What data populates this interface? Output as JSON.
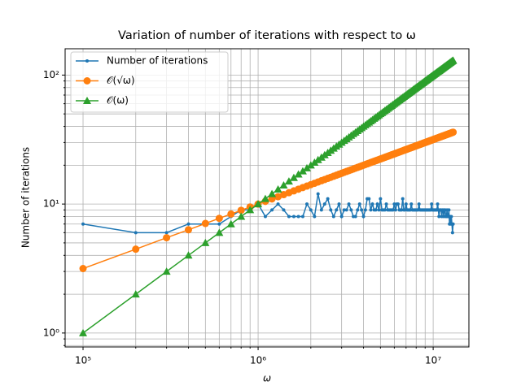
{
  "chart_data": {
    "type": "line",
    "title": "Variation of number of iterations with respect to ω",
    "xlabel": "ω",
    "ylabel": "Number of iterations",
    "xscale": "log",
    "yscale": "log",
    "grid": true,
    "legend": "upper left",
    "xlim": [
      79000,
      16000000
    ],
    "ylim": [
      0.78,
      160
    ],
    "xticks": [
      {
        "value": 100000,
        "label": "10⁵"
      },
      {
        "value": 1000000,
        "label": "10⁶"
      },
      {
        "value": 10000000,
        "label": "10⁷"
      }
    ],
    "yticks": [
      {
        "value": 1,
        "label": "10⁰"
      },
      {
        "value": 10,
        "label": "10¹"
      },
      {
        "value": 100,
        "label": "10²"
      }
    ],
    "xminorticks": [
      200000,
      300000,
      400000,
      500000,
      600000,
      700000,
      800000,
      900000,
      2000000,
      3000000,
      4000000,
      5000000,
      6000000,
      7000000,
      8000000,
      9000000
    ],
    "yminorticks": [
      0.8,
      0.9,
      2,
      3,
      4,
      5,
      6,
      7,
      8,
      9,
      20,
      30,
      40,
      50,
      60,
      70,
      80,
      90
    ],
    "x": [
      100000,
      200000,
      300000,
      400000,
      500000,
      600000,
      700000,
      800000,
      900000,
      1000000,
      1100000,
      1200000,
      1300000,
      1400000,
      1500000,
      1600000,
      1700000,
      1800000,
      1900000,
      2000000,
      2100000,
      2200000,
      2300000,
      2400000,
      2500000,
      2600000,
      2700000,
      2800000,
      2900000,
      3000000,
      3100000,
      3200000,
      3300000,
      3400000,
      3500000,
      3600000,
      3700000,
      3800000,
      3900000,
      4000000,
      4100000,
      4200000,
      4300000,
      4400000,
      4500000,
      4600000,
      4700000,
      4800000,
      4900000,
      5000000,
      5100000,
      5200000,
      5300000,
      5400000,
      5500000,
      5600000,
      5700000,
      5800000,
      5900000,
      6000000,
      6100000,
      6200000,
      6300000,
      6400000,
      6500000,
      6600000,
      6700000,
      6800000,
      6900000,
      7000000,
      7100000,
      7200000,
      7300000,
      7400000,
      7500000,
      7600000,
      7700000,
      7800000,
      7900000,
      8000000,
      8100000,
      8200000,
      8300000,
      8400000,
      8500000,
      8600000,
      8700000,
      8800000,
      8900000,
      9000000,
      9100000,
      9200000,
      9300000,
      9400000,
      9500000,
      9600000,
      9700000,
      9800000,
      9900000,
      10000000,
      10100000,
      10200000,
      10300000,
      10400000,
      10500000,
      10600000,
      10700000,
      10800000,
      10900000,
      11000000,
      11100000,
      11200000,
      11300000,
      11400000,
      11500000,
      11600000,
      11700000,
      11800000,
      11900000,
      12000000,
      12100000,
      12200000,
      12300000,
      12400000,
      12500000,
      12600000,
      12700000,
      12800000,
      12900000,
      13000000
    ],
    "series": [
      {
        "name": "Number of iterations",
        "color": "#1f77b4",
        "marker": "dot",
        "values": [
          7,
          6,
          6,
          7,
          7,
          7,
          8,
          9,
          9,
          10,
          8,
          9,
          10,
          9,
          8,
          8,
          8,
          8,
          10,
          9,
          8,
          12,
          9,
          10,
          11,
          9,
          8,
          9,
          10,
          8,
          9,
          9,
          10,
          9,
          8,
          8,
          9,
          10,
          9,
          8,
          9,
          11,
          11,
          9,
          10,
          9,
          9,
          10,
          9,
          11,
          9,
          9,
          9,
          10,
          9,
          9,
          9,
          9,
          9,
          10,
          9,
          10,
          10,
          9,
          9,
          9,
          11,
          9,
          9,
          10,
          9,
          9,
          9,
          9,
          10,
          9,
          9,
          9,
          9,
          9,
          9,
          9,
          10,
          9,
          9,
          9,
          9,
          9,
          9,
          9,
          9,
          9,
          9,
          9,
          9,
          9,
          9,
          10,
          9,
          9,
          9,
          9,
          9,
          9,
          9,
          10,
          9,
          8,
          9,
          9,
          9,
          8,
          9,
          9,
          8,
          9,
          9,
          8,
          8,
          9,
          8,
          8,
          9,
          7,
          8,
          7,
          8,
          7,
          6,
          7
        ]
      },
      {
        "name": "𝒪(√ω)",
        "color": "#ff7f0e",
        "marker": "circle",
        "values": [
          3.16,
          4.47,
          5.48,
          6.32,
          7.07,
          7.75,
          8.37,
          8.94,
          9.49,
          10,
          10.49,
          10.95,
          11.4,
          11.83,
          12.25,
          12.65,
          13.04,
          13.42,
          13.78,
          14.14,
          14.49,
          14.83,
          15.17,
          15.49,
          15.81,
          16.12,
          16.43,
          16.73,
          17.03,
          17.32,
          17.61,
          17.89,
          18.17,
          18.44,
          18.71,
          18.97,
          19.24,
          19.49,
          19.75,
          20,
          20.25,
          20.49,
          20.74,
          20.98,
          21.21,
          21.45,
          21.68,
          21.91,
          22.14,
          22.36,
          22.58,
          22.8,
          23.02,
          23.24,
          23.45,
          23.66,
          23.87,
          24.08,
          24.29,
          24.49,
          24.7,
          24.9,
          25.1,
          25.3,
          25.5,
          25.69,
          25.88,
          26.08,
          26.27,
          26.46,
          26.65,
          26.83,
          27.02,
          27.2,
          27.39,
          27.57,
          27.75,
          27.93,
          28.11,
          28.28,
          28.46,
          28.64,
          28.81,
          28.98,
          29.15,
          29.33,
          29.5,
          29.66,
          29.83,
          30,
          30.17,
          30.33,
          30.5,
          30.66,
          30.82,
          30.98,
          31.14,
          31.3,
          31.46,
          31.62,
          31.78,
          31.94,
          32.09,
          32.25,
          32.4,
          32.56,
          32.71,
          32.86,
          33.02,
          33.17,
          33.32,
          33.47,
          33.62,
          33.76,
          33.91,
          34.06,
          34.21,
          34.35,
          34.5,
          34.64,
          34.79,
          34.93,
          35.07,
          35.21,
          35.36,
          35.5,
          35.64,
          35.78,
          35.92,
          36.06
        ]
      },
      {
        "name": "𝒪(ω)",
        "color": "#2ca02c",
        "marker": "triangle",
        "values": [
          1,
          2,
          3,
          4,
          5,
          6,
          7,
          8,
          9,
          10,
          11,
          12,
          13,
          14,
          15,
          16,
          17,
          18,
          19,
          20,
          21,
          22,
          23,
          24,
          25,
          26,
          27,
          28,
          29,
          30,
          31,
          32,
          33,
          34,
          35,
          36,
          37,
          38,
          39,
          40,
          41,
          42,
          43,
          44,
          45,
          46,
          47,
          48,
          49,
          50,
          51,
          52,
          53,
          54,
          55,
          56,
          57,
          58,
          59,
          60,
          61,
          62,
          63,
          64,
          65,
          66,
          67,
          68,
          69,
          70,
          71,
          72,
          73,
          74,
          75,
          76,
          77,
          78,
          79,
          80,
          81,
          82,
          83,
          84,
          85,
          86,
          87,
          88,
          89,
          90,
          91,
          92,
          93,
          94,
          95,
          96,
          97,
          98,
          99,
          100,
          101,
          102,
          103,
          104,
          105,
          106,
          107,
          108,
          109,
          110,
          111,
          112,
          113,
          114,
          115,
          116,
          117,
          118,
          119,
          120,
          121,
          122,
          123,
          124,
          125,
          126,
          127,
          128,
          129,
          130
        ]
      }
    ]
  }
}
